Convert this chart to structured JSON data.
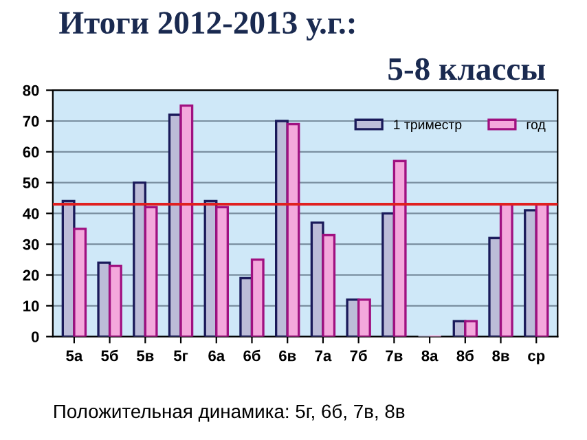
{
  "chart_data": {
    "type": "bar",
    "title": "Итоги 2012-2013 у.г.:",
    "subtitle": "5-8 классы",
    "categories": [
      "5а",
      "5б",
      "5в",
      "5г",
      "6а",
      "6б",
      "6в",
      "7а",
      "7б",
      "7в",
      "8а",
      "8б",
      "8в",
      "ср"
    ],
    "series": [
      {
        "name": "1 триместр",
        "color": "#bcbcd8",
        "values": [
          44,
          24,
          50,
          72,
          44,
          19,
          70,
          37,
          12,
          40,
          0,
          5,
          32,
          41
        ]
      },
      {
        "name": "год",
        "color": "#f4a8dc",
        "values": [
          35,
          23,
          42,
          75,
          42,
          25,
          69,
          33,
          12,
          57,
          0,
          5,
          43,
          43
        ]
      }
    ],
    "ylim": [
      0,
      80
    ],
    "yticks": [
      0,
      10,
      20,
      30,
      40,
      50,
      60,
      70,
      80
    ],
    "grid": "y",
    "legend": "top right",
    "ref_lines": [
      {
        "axis": "y",
        "value": 43,
        "color": "#e02020"
      }
    ],
    "annotations": [
      "Положительная динамика: 5г, 6б, 7в, 8в"
    ]
  }
}
